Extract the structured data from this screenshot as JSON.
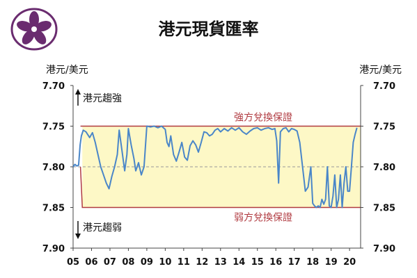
{
  "title": "港元現貨匯率",
  "units": {
    "left": "港元/美元",
    "right": "港元/美元"
  },
  "colors": {
    "background": "#ffffff",
    "band_fill": "#fdf8c6",
    "band_line": "#b03a40",
    "series": "#4a86c8",
    "midline": "#999999",
    "logo": "#6a2c6f"
  },
  "chart_data": {
    "type": "line",
    "title": "港元現貨匯率",
    "ylabel": "港元/美元",
    "yreversed": true,
    "ylim": [
      7.7,
      7.9
    ],
    "yticks": [
      "7.70",
      "7.75",
      "7.80",
      "7.85",
      "7.90"
    ],
    "xlim": [
      2005.0,
      2020.6
    ],
    "xticks": [
      "05",
      "06",
      "07",
      "08",
      "09",
      "10",
      "11",
      "12",
      "13",
      "14",
      "15",
      "16",
      "17",
      "18",
      "19",
      "20"
    ],
    "annotations": {
      "strong_band": "強方兌換保證",
      "weak_band": "弱方兌換保證",
      "up_arrow": "港元趨強",
      "down_arrow": "港元趨弱"
    },
    "bands": [
      {
        "name": "強方兌換保證",
        "value": 7.75,
        "from": 2005.4
      },
      {
        "name": "弱方兌換保證",
        "value": 7.85,
        "from": 2005.5
      }
    ],
    "reference_line": 7.8,
    "series": [
      {
        "x": [
          2005.0,
          2005.1,
          2005.2,
          2005.3,
          2005.38,
          2005.45,
          2005.55,
          2005.7,
          2005.9,
          2006.05,
          2006.2,
          2006.35,
          2006.5,
          2006.65,
          2006.8,
          2006.95,
          2007.1,
          2007.25,
          2007.4,
          2007.5,
          2007.65,
          2007.8,
          2007.92,
          2008.0,
          2008.15,
          2008.3,
          2008.4,
          2008.55,
          2008.7,
          2008.85,
          2009.0,
          2009.2,
          2009.4,
          2009.6,
          2009.8,
          2010.0,
          2010.1,
          2010.2,
          2010.3,
          2010.45,
          2010.6,
          2010.75,
          2010.9,
          2011.05,
          2011.2,
          2011.35,
          2011.5,
          2011.65,
          2011.8,
          2011.95,
          2012.1,
          2012.25,
          2012.4,
          2012.55,
          2012.7,
          2012.85,
          2013.0,
          2013.2,
          2013.4,
          2013.6,
          2013.8,
          2014.0,
          2014.2,
          2014.4,
          2014.6,
          2014.8,
          2015.0,
          2015.2,
          2015.4,
          2015.6,
          2015.8,
          2015.95,
          2016.05,
          2016.15,
          2016.25,
          2016.4,
          2016.55,
          2016.7,
          2016.85,
          2017.0,
          2017.15,
          2017.3,
          2017.45,
          2017.6,
          2017.75,
          2017.9,
          2018.0,
          2018.1,
          2018.2,
          2018.3,
          2018.4,
          2018.5,
          2018.6,
          2018.7,
          2018.8,
          2018.9,
          2019.0,
          2019.1,
          2019.2,
          2019.3,
          2019.4,
          2019.5,
          2019.6,
          2019.7,
          2019.8,
          2019.9,
          2020.0,
          2020.1,
          2020.2,
          2020.3,
          2020.4
        ],
        "values": [
          7.8,
          7.797,
          7.799,
          7.798,
          7.773,
          7.762,
          7.755,
          7.757,
          7.764,
          7.758,
          7.77,
          7.785,
          7.8,
          7.81,
          7.82,
          7.827,
          7.812,
          7.8,
          7.785,
          7.755,
          7.78,
          7.805,
          7.785,
          7.753,
          7.773,
          7.79,
          7.805,
          7.795,
          7.81,
          7.8,
          7.75,
          7.751,
          7.75,
          7.752,
          7.75,
          7.754,
          7.77,
          7.775,
          7.762,
          7.785,
          7.793,
          7.782,
          7.77,
          7.788,
          7.792,
          7.774,
          7.768,
          7.773,
          7.782,
          7.77,
          7.757,
          7.758,
          7.762,
          7.76,
          7.755,
          7.753,
          7.757,
          7.753,
          7.756,
          7.752,
          7.755,
          7.752,
          7.757,
          7.76,
          7.756,
          7.753,
          7.752,
          7.755,
          7.753,
          7.752,
          7.754,
          7.753,
          7.768,
          7.82,
          7.757,
          7.753,
          7.752,
          7.757,
          7.753,
          7.754,
          7.756,
          7.77,
          7.8,
          7.83,
          7.825,
          7.8,
          7.845,
          7.848,
          7.85,
          7.848,
          7.85,
          7.84,
          7.846,
          7.84,
          7.8,
          7.848,
          7.85,
          7.836,
          7.81,
          7.85,
          7.84,
          7.81,
          7.85,
          7.82,
          7.8,
          7.83,
          7.83,
          7.8,
          7.77,
          7.76,
          7.752
        ],
        "note": "values read approximately from the plotted line"
      }
    ]
  }
}
